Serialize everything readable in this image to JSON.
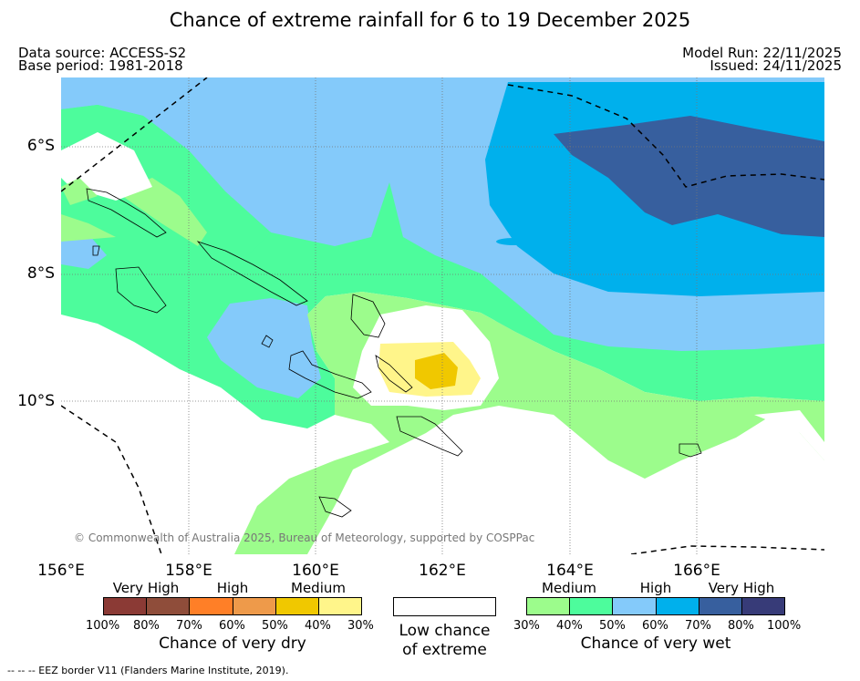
{
  "title": "Chance of extreme rainfall for 6 to 19 December 2025",
  "header": {
    "data_source": "Data source: ACCESS-S2",
    "base_period": "Base period: 1981-2018",
    "model_run": "Model Run: 22/11/2025",
    "issued": "Issued: 24/11/2025"
  },
  "map": {
    "lat_labels": [
      "6°S",
      "8°S",
      "10°S"
    ],
    "lon_labels": [
      "156°E",
      "158°E",
      "160°E",
      "162°E",
      "164°E",
      "166°E"
    ],
    "copyright": "© Commonwealth of Australia 2025, Bureau of Meteorology, supported by COSPPac"
  },
  "legend": {
    "dry": {
      "categories": [
        "Very High",
        "High",
        "Medium"
      ],
      "colors": [
        "#8b3a35",
        "#8f4d3a",
        "#ff7f27",
        "#ee9a4a",
        "#f0c800",
        "#fff58a"
      ],
      "ticks": [
        "100%",
        "80%",
        "70%",
        "60%",
        "50%",
        "40%",
        "30%"
      ],
      "caption": "Chance of very dry"
    },
    "low": {
      "caption_line1": "Low chance",
      "caption_line2": "of extreme"
    },
    "wet": {
      "categories": [
        "Medium",
        "High",
        "Very High"
      ],
      "colors": [
        "#9cfc8c",
        "#4dfc9c",
        "#84cafa",
        "#00b0ec",
        "#375f9e",
        "#373b78"
      ],
      "ticks": [
        "30%",
        "40%",
        "50%",
        "60%",
        "70%",
        "80%",
        "100%"
      ],
      "caption": "Chance of very wet"
    }
  },
  "footnote": "--  --  -- EEZ border V11 (Flanders Marine Institute, 2019)."
}
